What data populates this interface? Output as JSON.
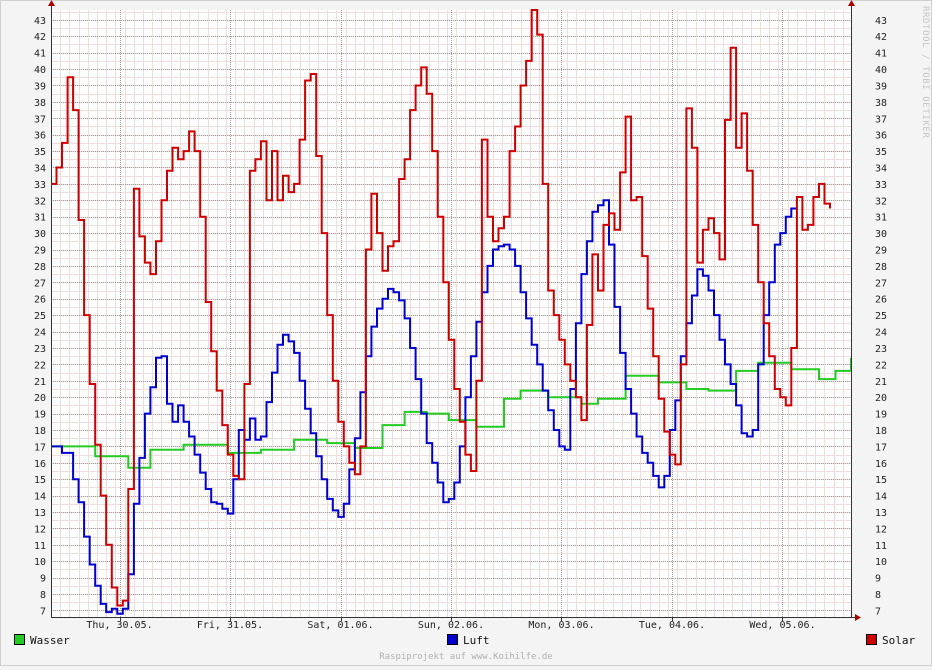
{
  "chart_data": {
    "type": "line",
    "ylim": [
      6.6,
      43.6
    ],
    "y_ticks": [
      7,
      8,
      9,
      10,
      11,
      12,
      13,
      14,
      15,
      16,
      17,
      18,
      19,
      20,
      21,
      22,
      23,
      24,
      25,
      26,
      27,
      28,
      29,
      30,
      31,
      32,
      33,
      34,
      35,
      36,
      37,
      38,
      39,
      40,
      41,
      42,
      43
    ],
    "x_range_days": [
      0,
      7.24
    ],
    "x_ticks": [
      {
        "day": 0.62,
        "label": "Thu, 30.05."
      },
      {
        "day": 1.62,
        "label": "Fri, 31.05."
      },
      {
        "day": 2.62,
        "label": "Sat, 01.06."
      },
      {
        "day": 3.62,
        "label": "Sun, 02.06."
      },
      {
        "day": 4.62,
        "label": "Mon, 03.06."
      },
      {
        "day": 5.62,
        "label": "Tue, 04.06."
      },
      {
        "day": 6.62,
        "label": "Wed, 05.06."
      }
    ],
    "grid": true,
    "side_label": "RRDTOOL / TOBI OETIKER",
    "footer": "Raspiprojekt auf www.Koihilfe.de",
    "series": [
      {
        "name": "Wasser",
        "color": "#22cc22",
        "points": [
          [
            0.0,
            17.0
          ],
          [
            0.4,
            16.4
          ],
          [
            0.7,
            15.7
          ],
          [
            0.9,
            16.8
          ],
          [
            1.2,
            17.1
          ],
          [
            1.6,
            16.6
          ],
          [
            1.9,
            16.8
          ],
          [
            2.2,
            17.4
          ],
          [
            2.5,
            17.2
          ],
          [
            2.75,
            16.9
          ],
          [
            3.0,
            18.3
          ],
          [
            3.2,
            19.1
          ],
          [
            3.4,
            19.0
          ],
          [
            3.6,
            18.6
          ],
          [
            3.85,
            18.2
          ],
          [
            4.1,
            19.9
          ],
          [
            4.25,
            20.4
          ],
          [
            4.5,
            20.0
          ],
          [
            4.8,
            19.6
          ],
          [
            4.95,
            19.9
          ],
          [
            5.2,
            21.3
          ],
          [
            5.5,
            20.9
          ],
          [
            5.75,
            20.5
          ],
          [
            5.95,
            20.4
          ],
          [
            6.2,
            21.6
          ],
          [
            6.4,
            22.1
          ],
          [
            6.7,
            21.7
          ],
          [
            6.95,
            21.1
          ],
          [
            7.1,
            21.6
          ],
          [
            7.24,
            22.4
          ]
        ]
      },
      {
        "name": "Luft",
        "color": "#0000cc",
        "points": [
          [
            0.0,
            17.0
          ],
          [
            0.1,
            16.6
          ],
          [
            0.2,
            15.0
          ],
          [
            0.25,
            13.6
          ],
          [
            0.3,
            11.5
          ],
          [
            0.35,
            9.8
          ],
          [
            0.4,
            8.5
          ],
          [
            0.45,
            7.4
          ],
          [
            0.5,
            6.9
          ],
          [
            0.55,
            7.1
          ],
          [
            0.6,
            6.8
          ],
          [
            0.65,
            7.1
          ],
          [
            0.7,
            9.2
          ],
          [
            0.75,
            13.5
          ],
          [
            0.8,
            16.3
          ],
          [
            0.85,
            19.0
          ],
          [
            0.9,
            20.6
          ],
          [
            0.95,
            22.4
          ],
          [
            1.0,
            22.5
          ],
          [
            1.05,
            19.6
          ],
          [
            1.1,
            18.5
          ],
          [
            1.15,
            19.5
          ],
          [
            1.2,
            18.5
          ],
          [
            1.25,
            17.6
          ],
          [
            1.3,
            16.5
          ],
          [
            1.35,
            15.4
          ],
          [
            1.4,
            14.4
          ],
          [
            1.45,
            13.6
          ],
          [
            1.5,
            13.5
          ],
          [
            1.55,
            13.2
          ],
          [
            1.6,
            12.9
          ],
          [
            1.65,
            15.0
          ],
          [
            1.7,
            18.0
          ],
          [
            1.75,
            17.4
          ],
          [
            1.8,
            18.7
          ],
          [
            1.85,
            17.4
          ],
          [
            1.9,
            17.6
          ],
          [
            1.95,
            19.7
          ],
          [
            2.0,
            21.5
          ],
          [
            2.05,
            23.2
          ],
          [
            2.1,
            23.8
          ],
          [
            2.15,
            23.4
          ],
          [
            2.2,
            22.7
          ],
          [
            2.25,
            21.0
          ],
          [
            2.3,
            19.3
          ],
          [
            2.35,
            17.8
          ],
          [
            2.4,
            16.4
          ],
          [
            2.45,
            15.0
          ],
          [
            2.5,
            13.8
          ],
          [
            2.55,
            13.1
          ],
          [
            2.6,
            12.7
          ],
          [
            2.65,
            13.5
          ],
          [
            2.7,
            15.6
          ],
          [
            2.75,
            17.5
          ],
          [
            2.8,
            20.3
          ],
          [
            2.85,
            22.5
          ],
          [
            2.9,
            24.3
          ],
          [
            2.95,
            25.4
          ],
          [
            3.0,
            26.0
          ],
          [
            3.05,
            26.6
          ],
          [
            3.1,
            26.4
          ],
          [
            3.15,
            25.9
          ],
          [
            3.2,
            24.8
          ],
          [
            3.25,
            23.0
          ],
          [
            3.3,
            21.1
          ],
          [
            3.35,
            19.0
          ],
          [
            3.4,
            17.2
          ],
          [
            3.45,
            16.0
          ],
          [
            3.5,
            14.8
          ],
          [
            3.55,
            13.6
          ],
          [
            3.6,
            13.8
          ],
          [
            3.65,
            14.8
          ],
          [
            3.7,
            17.0
          ],
          [
            3.75,
            20.0
          ],
          [
            3.8,
            22.5
          ],
          [
            3.85,
            24.6
          ],
          [
            3.9,
            26.4
          ],
          [
            3.95,
            28.0
          ],
          [
            4.0,
            29.0
          ],
          [
            4.05,
            29.2
          ],
          [
            4.1,
            29.3
          ],
          [
            4.15,
            29.0
          ],
          [
            4.2,
            28.0
          ],
          [
            4.25,
            26.4
          ],
          [
            4.3,
            24.8
          ],
          [
            4.35,
            23.2
          ],
          [
            4.4,
            22.0
          ],
          [
            4.45,
            20.4
          ],
          [
            4.5,
            19.2
          ],
          [
            4.55,
            18.0
          ],
          [
            4.6,
            17.0
          ],
          [
            4.65,
            16.8
          ],
          [
            4.7,
            20.5
          ],
          [
            4.75,
            24.5
          ],
          [
            4.8,
            27.5
          ],
          [
            4.85,
            29.5
          ],
          [
            4.9,
            31.3
          ],
          [
            4.95,
            31.7
          ],
          [
            5.0,
            32.0
          ],
          [
            5.05,
            29.3
          ],
          [
            5.1,
            25.5
          ],
          [
            5.15,
            22.7
          ],
          [
            5.2,
            20.5
          ],
          [
            5.25,
            19.0
          ],
          [
            5.3,
            17.6
          ],
          [
            5.35,
            16.6
          ],
          [
            5.4,
            16.0
          ],
          [
            5.45,
            15.2
          ],
          [
            5.5,
            14.5
          ],
          [
            5.55,
            15.2
          ],
          [
            5.6,
            18.0
          ],
          [
            5.65,
            19.8
          ],
          [
            5.7,
            22.5
          ],
          [
            5.75,
            24.5
          ],
          [
            5.8,
            26.2
          ],
          [
            5.85,
            27.8
          ],
          [
            5.9,
            27.4
          ],
          [
            5.95,
            26.5
          ],
          [
            6.0,
            25.0
          ],
          [
            6.05,
            23.5
          ],
          [
            6.1,
            22.0
          ],
          [
            6.15,
            20.8
          ],
          [
            6.2,
            19.5
          ],
          [
            6.25,
            17.8
          ],
          [
            6.3,
            17.6
          ],
          [
            6.35,
            18.0
          ],
          [
            6.4,
            22.0
          ],
          [
            6.45,
            25.0
          ],
          [
            6.5,
            27.0
          ],
          [
            6.55,
            29.3
          ],
          [
            6.6,
            30.0
          ],
          [
            6.65,
            31.0
          ],
          [
            6.7,
            31.5
          ],
          [
            6.75,
            31.5
          ]
        ]
      },
      {
        "name": "Solar",
        "color": "#cc0000",
        "points": [
          [
            0.0,
            33.0
          ],
          [
            0.05,
            34.0
          ],
          [
            0.1,
            35.5
          ],
          [
            0.15,
            39.5
          ],
          [
            0.2,
            37.5
          ],
          [
            0.25,
            30.8
          ],
          [
            0.3,
            25.0
          ],
          [
            0.35,
            20.8
          ],
          [
            0.4,
            17.1
          ],
          [
            0.45,
            14.0
          ],
          [
            0.5,
            11.0
          ],
          [
            0.55,
            8.4
          ],
          [
            0.6,
            7.3
          ],
          [
            0.65,
            7.6
          ],
          [
            0.7,
            14.4
          ],
          [
            0.75,
            32.7
          ],
          [
            0.8,
            29.8
          ],
          [
            0.85,
            28.2
          ],
          [
            0.9,
            27.5
          ],
          [
            0.95,
            29.5
          ],
          [
            1.0,
            32.0
          ],
          [
            1.05,
            33.8
          ],
          [
            1.1,
            35.2
          ],
          [
            1.15,
            34.5
          ],
          [
            1.2,
            35.0
          ],
          [
            1.25,
            36.2
          ],
          [
            1.3,
            35.0
          ],
          [
            1.35,
            31.0
          ],
          [
            1.4,
            25.8
          ],
          [
            1.45,
            22.8
          ],
          [
            1.5,
            20.4
          ],
          [
            1.55,
            18.3
          ],
          [
            1.6,
            16.5
          ],
          [
            1.65,
            15.2
          ],
          [
            1.7,
            15.0
          ],
          [
            1.75,
            20.8
          ],
          [
            1.8,
            33.8
          ],
          [
            1.85,
            34.5
          ],
          [
            1.9,
            35.6
          ],
          [
            1.95,
            32.0
          ],
          [
            2.0,
            35.0
          ],
          [
            2.05,
            32.0
          ],
          [
            2.1,
            33.5
          ],
          [
            2.15,
            32.5
          ],
          [
            2.2,
            33.0
          ],
          [
            2.25,
            35.7
          ],
          [
            2.3,
            39.3
          ],
          [
            2.35,
            39.7
          ],
          [
            2.4,
            34.7
          ],
          [
            2.45,
            30.0
          ],
          [
            2.5,
            25.0
          ],
          [
            2.55,
            21.0
          ],
          [
            2.6,
            18.5
          ],
          [
            2.65,
            17.0
          ],
          [
            2.7,
            16.0
          ],
          [
            2.75,
            15.3
          ],
          [
            2.8,
            17.0
          ],
          [
            2.85,
            29.0
          ],
          [
            2.9,
            32.4
          ],
          [
            2.95,
            30.0
          ],
          [
            3.0,
            27.7
          ],
          [
            3.05,
            29.2
          ],
          [
            3.1,
            29.5
          ],
          [
            3.15,
            33.3
          ],
          [
            3.2,
            34.5
          ],
          [
            3.25,
            37.5
          ],
          [
            3.3,
            39.0
          ],
          [
            3.35,
            40.1
          ],
          [
            3.4,
            38.5
          ],
          [
            3.45,
            35.0
          ],
          [
            3.5,
            31.0
          ],
          [
            3.55,
            27.0
          ],
          [
            3.6,
            23.5
          ],
          [
            3.65,
            20.5
          ],
          [
            3.7,
            18.5
          ],
          [
            3.75,
            16.5
          ],
          [
            3.8,
            15.5
          ],
          [
            3.85,
            21.0
          ],
          [
            3.9,
            35.7
          ],
          [
            3.95,
            31.0
          ],
          [
            4.0,
            29.5
          ],
          [
            4.05,
            30.3
          ],
          [
            4.1,
            31.0
          ],
          [
            4.15,
            35.0
          ],
          [
            4.2,
            36.5
          ],
          [
            4.25,
            39.0
          ],
          [
            4.3,
            40.5
          ],
          [
            4.35,
            43.6
          ],
          [
            4.4,
            42.1
          ],
          [
            4.45,
            33.0
          ],
          [
            4.5,
            26.5
          ],
          [
            4.55,
            25.0
          ],
          [
            4.6,
            23.5
          ],
          [
            4.65,
            22.0
          ],
          [
            4.7,
            21.0
          ],
          [
            4.75,
            20.0
          ],
          [
            4.8,
            18.6
          ],
          [
            4.85,
            24.4
          ],
          [
            4.9,
            28.7
          ],
          [
            4.95,
            26.5
          ],
          [
            5.0,
            30.5
          ],
          [
            5.05,
            31.2
          ],
          [
            5.1,
            30.2
          ],
          [
            5.15,
            33.7
          ],
          [
            5.2,
            37.1
          ],
          [
            5.25,
            32.0
          ],
          [
            5.3,
            32.2
          ],
          [
            5.35,
            28.6
          ],
          [
            5.4,
            25.4
          ],
          [
            5.45,
            22.5
          ],
          [
            5.5,
            19.9
          ],
          [
            5.55,
            17.9
          ],
          [
            5.6,
            16.5
          ],
          [
            5.65,
            15.9
          ],
          [
            5.7,
            22.0
          ],
          [
            5.75,
            37.6
          ],
          [
            5.8,
            35.2
          ],
          [
            5.85,
            28.2
          ],
          [
            5.9,
            30.2
          ],
          [
            5.95,
            30.9
          ],
          [
            6.0,
            30.0
          ],
          [
            6.05,
            28.4
          ],
          [
            6.1,
            36.9
          ],
          [
            6.15,
            41.3
          ],
          [
            6.2,
            35.2
          ],
          [
            6.25,
            37.3
          ],
          [
            6.3,
            33.8
          ],
          [
            6.35,
            30.5
          ],
          [
            6.4,
            27.0
          ],
          [
            6.45,
            24.5
          ],
          [
            6.5,
            22.5
          ],
          [
            6.55,
            20.5
          ],
          [
            6.6,
            20.0
          ],
          [
            6.65,
            19.5
          ],
          [
            6.7,
            23.0
          ],
          [
            6.75,
            32.2
          ],
          [
            6.8,
            30.2
          ],
          [
            6.85,
            30.5
          ],
          [
            6.9,
            32.2
          ],
          [
            6.95,
            33.0
          ],
          [
            7.0,
            31.8
          ],
          [
            7.05,
            31.5
          ]
        ]
      }
    ]
  }
}
